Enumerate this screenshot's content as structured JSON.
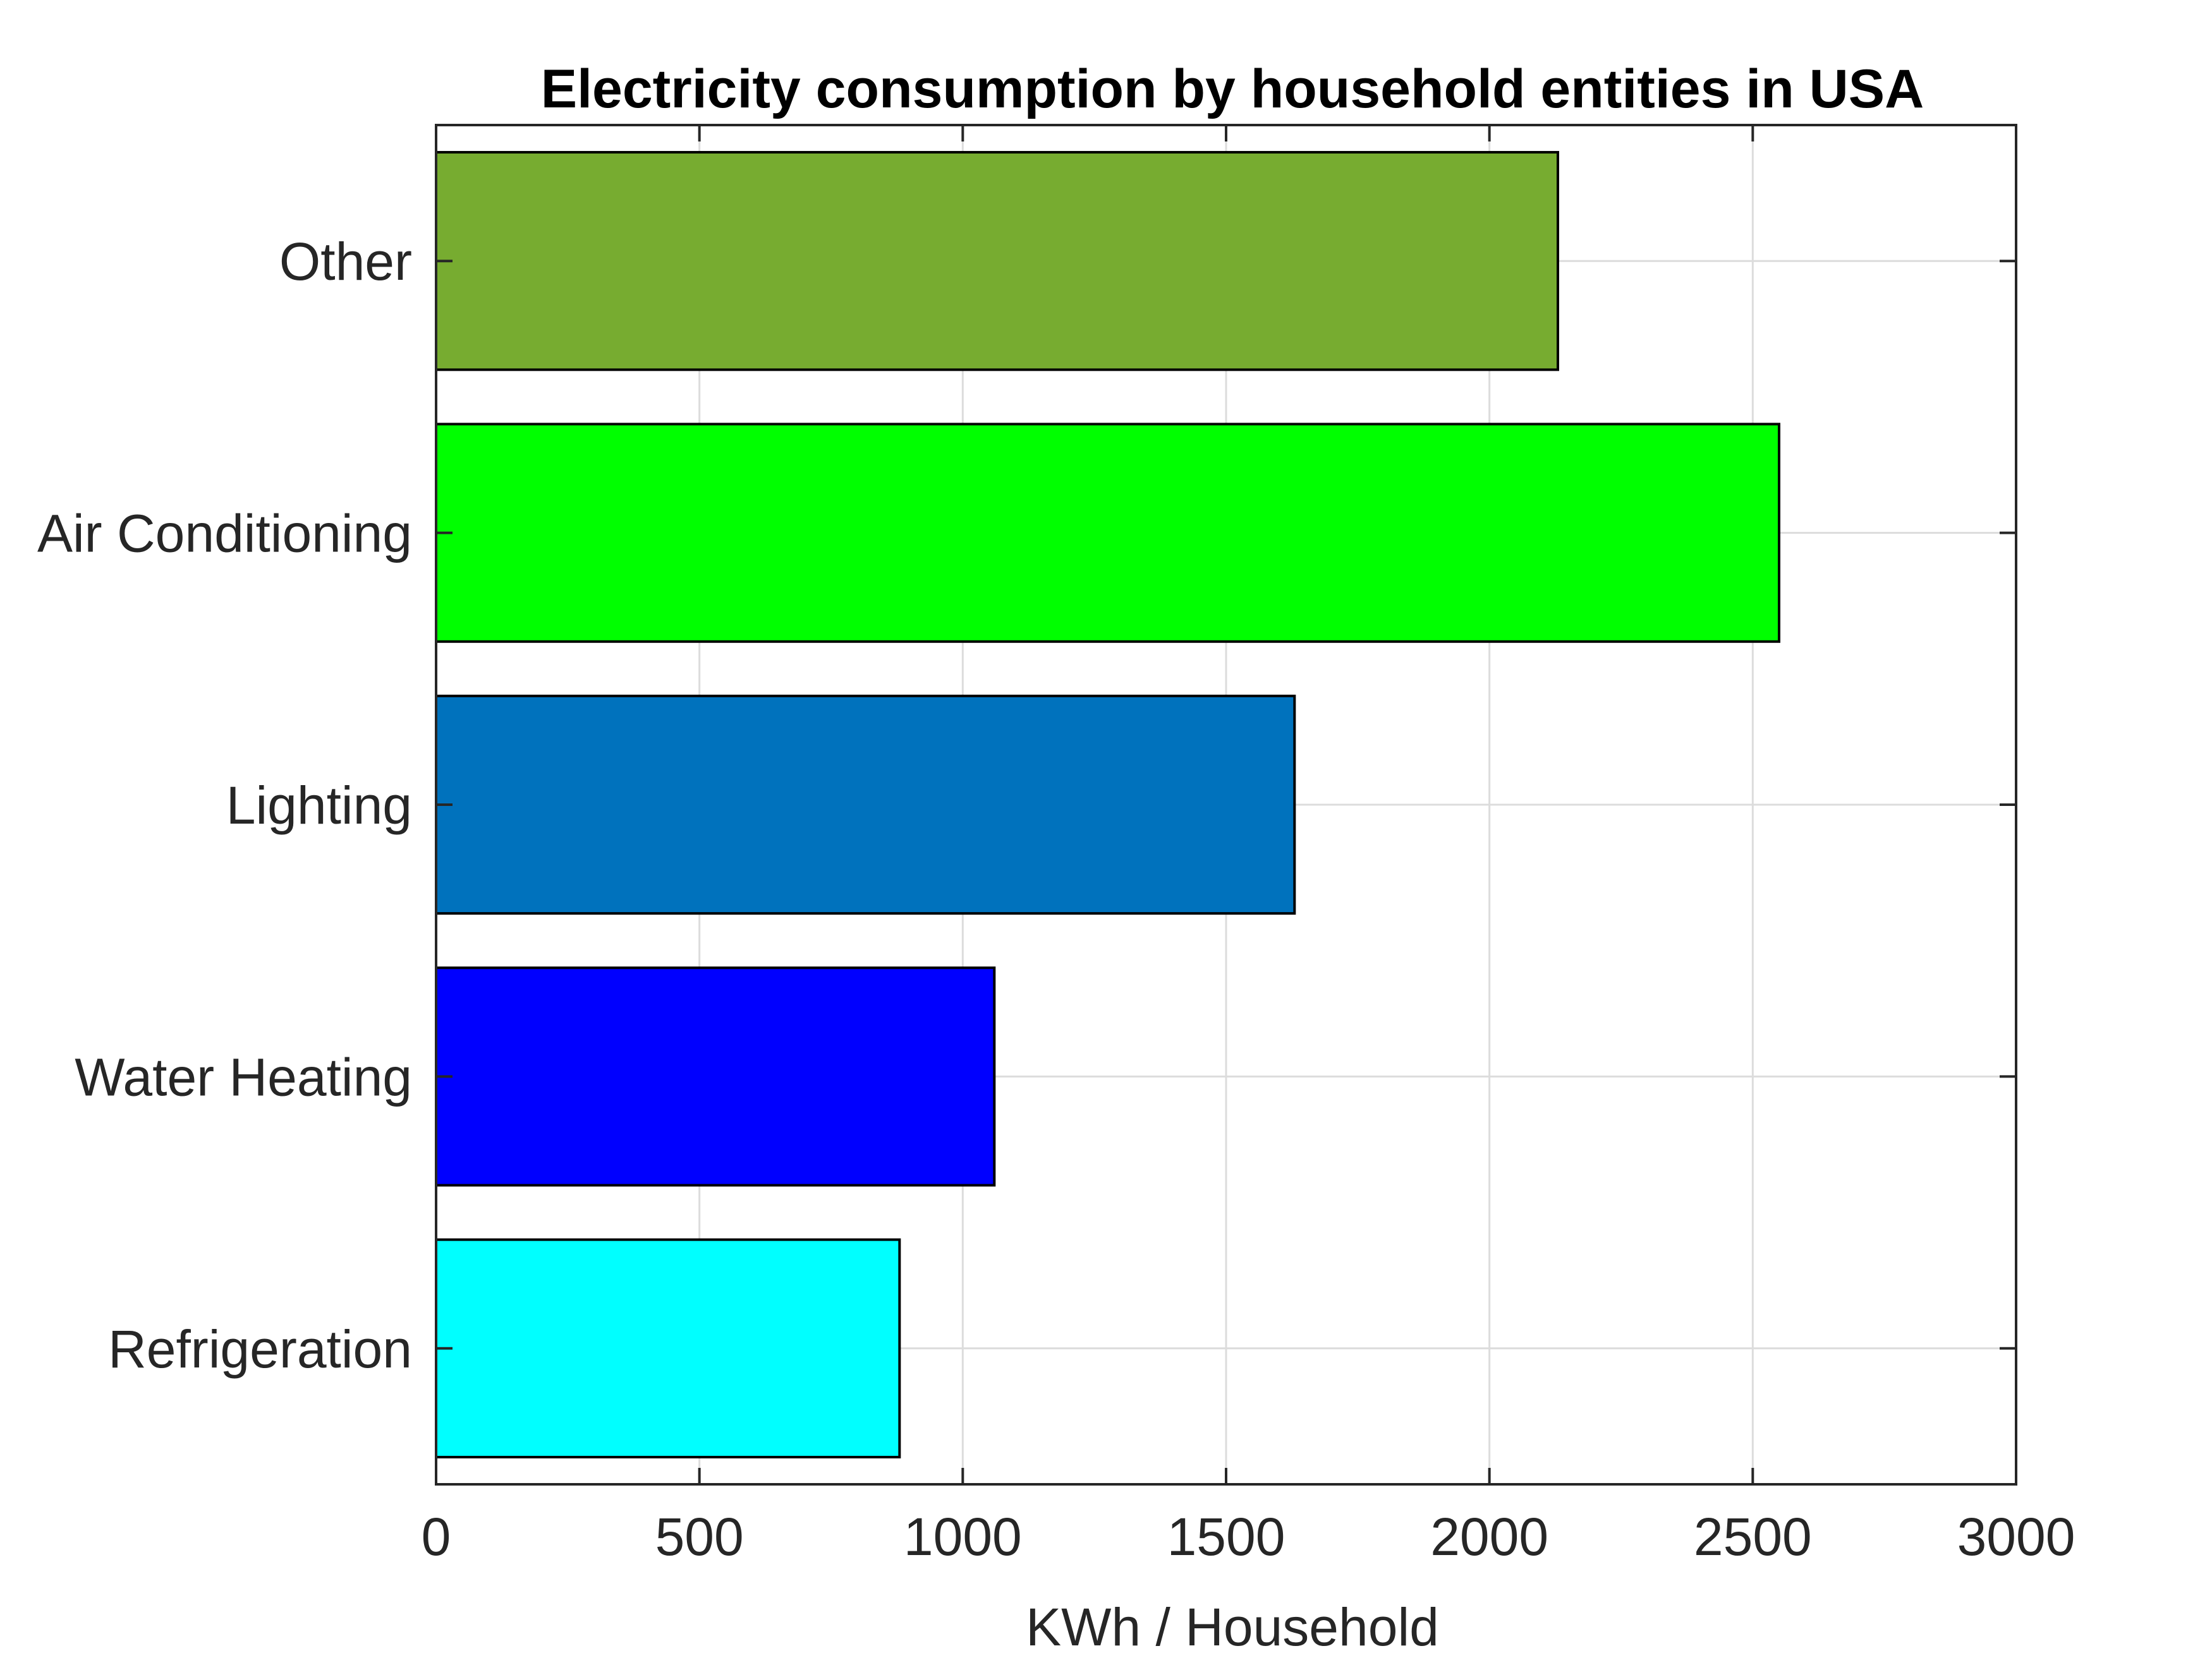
{
  "chart_data": {
    "type": "bar",
    "orientation": "horizontal",
    "title": "Electricity consumption by household entities in USA",
    "xlabel": "KWh / Household",
    "ylabel": "",
    "xlim": [
      0,
      3000
    ],
    "xticks": [
      0,
      500,
      1000,
      1500,
      2000,
      2500,
      3000
    ],
    "xtick_labels": [
      "0",
      "500",
      "1000",
      "1500",
      "2000",
      "2500",
      "3000"
    ],
    "grid": true,
    "categories": [
      "Refrigeration",
      "Water Heating",
      "Lighting",
      "Air Conditioning",
      "Other"
    ],
    "values": [
      880,
      1060,
      1630,
      2550,
      2130
    ],
    "colors": [
      "#00ffff",
      "#0000ff",
      "#0072bd",
      "#00ff00",
      "#77ac30"
    ]
  },
  "style": {
    "axis_color": "#262626",
    "grid_color": "#dcdcdc",
    "bar_edge_color": "#000000",
    "background": "#ffffff"
  }
}
